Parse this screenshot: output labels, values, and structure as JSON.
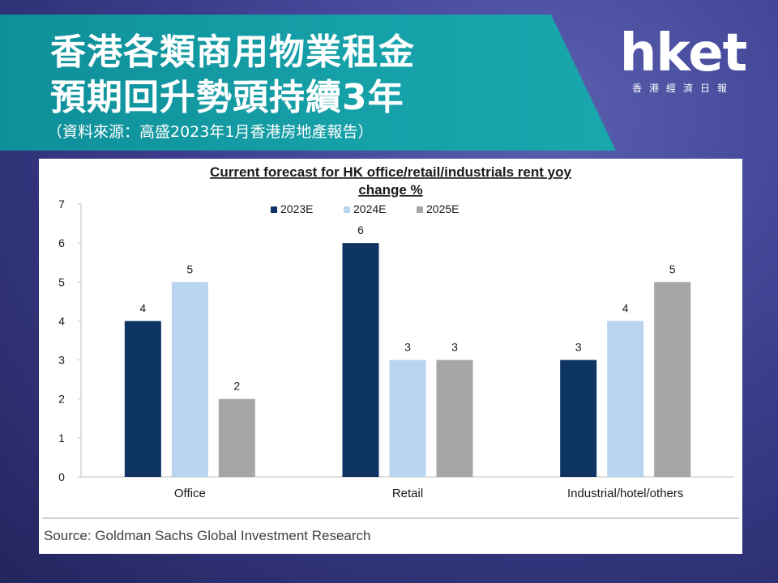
{
  "header": {
    "title_line1": "香港各類商用物業租金",
    "title_line2": "預期回升勢頭持續3年",
    "source_note": "（資料來源：高盛2023年1月香港房地產報告）"
  },
  "logo": {
    "main": "hket",
    "sub": "香港經濟日報"
  },
  "colors": {
    "series_2023E": "#0d3463",
    "series_2024E": "#b8d4ef",
    "series_2025E": "#a6a6a6",
    "banner": "#16a1a9"
  },
  "chart_data": {
    "type": "bar",
    "title": "Current forecast for HK office/retail/industrials rent yoy change %",
    "title_line1": "Current forecast for HK office/retail/industrials rent yoy",
    "title_line2": "change %",
    "categories": [
      "Office",
      "Retail",
      "Industrial/hotel/others"
    ],
    "series": [
      {
        "name": "2023E",
        "values": [
          4,
          6,
          3
        ]
      },
      {
        "name": "2024E",
        "values": [
          5,
          3,
          4
        ]
      },
      {
        "name": "2025E",
        "values": [
          2,
          3,
          5
        ]
      }
    ],
    "ylim": [
      0,
      7
    ],
    "yticks": [
      0,
      1,
      2,
      3,
      4,
      5,
      6,
      7
    ],
    "legend_position": "top-center",
    "grid": false,
    "data_labels": true,
    "source": "Source: Goldman Sachs Global Investment Research"
  }
}
